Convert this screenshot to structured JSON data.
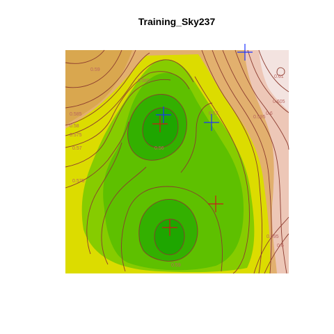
{
  "chart_data": {
    "type": "heatmap",
    "title": "Training_Sky237",
    "xlabel": "",
    "ylabel": "",
    "axes_shown": false,
    "colormap": "terrain",
    "colormap_stops": [
      "#00a600",
      "#3fbd00",
      "#e6e600",
      "#e8c16c",
      "#f2f2f2"
    ],
    "value_range": [
      0.54,
      0.615
    ],
    "contour_labels": [
      "0.59",
      "0.565",
      "0.585",
      "0.58",
      "0.575",
      "0.57",
      "0.575",
      "0.6",
      "0.605",
      "0.61",
      "0.595",
      "0.57",
      "0.595",
      "0.6",
      "0.56",
      "0.59"
    ],
    "markers": [
      {
        "type": "plus",
        "color": "#0000ff",
        "label": ""
      },
      {
        "type": "plus",
        "color": "#0000ff",
        "label": ""
      },
      {
        "type": "plus",
        "color": "#0000ff",
        "label": ""
      },
      {
        "type": "plus",
        "color": "#cc0000",
        "label": ""
      },
      {
        "type": "plus",
        "color": "#cc0000",
        "label": ""
      },
      {
        "type": "plus",
        "color": "#cc0000",
        "label": ""
      }
    ]
  }
}
